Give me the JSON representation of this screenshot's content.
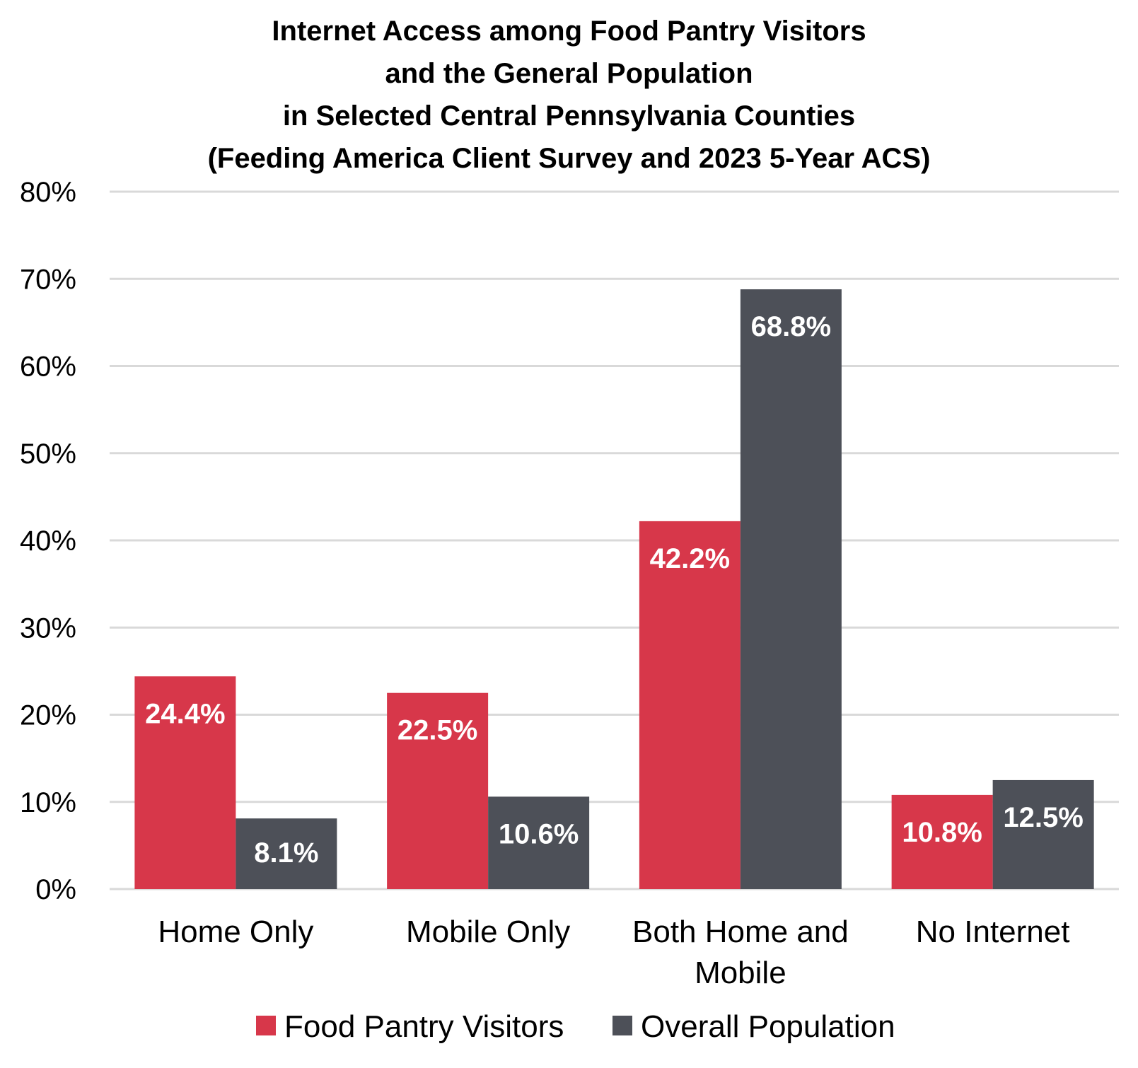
{
  "chart_data": {
    "type": "bar",
    "title_lines": [
      "Internet Access among Food Pantry Visitors",
      "and the General Population",
      "in Selected Central Pennsylvania Counties",
      "(Feeding America Client Survey and 2023 5-Year ACS)"
    ],
    "categories": [
      [
        "Home Only"
      ],
      [
        "Mobile Only"
      ],
      [
        "Both Home and",
        "Mobile"
      ],
      [
        "No Internet"
      ]
    ],
    "series": [
      {
        "name": "Food Pantry Visitors",
        "color": "#D7374A",
        "values": [
          24.4,
          22.5,
          42.2,
          10.8
        ],
        "labels": [
          "24.4%",
          "22.5%",
          "42.2%",
          "10.8%"
        ]
      },
      {
        "name": "Overall Population",
        "color": "#4D5058",
        "values": [
          8.1,
          10.6,
          68.8,
          12.5
        ],
        "labels": [
          "8.1%",
          "10.6%",
          "68.8%",
          "12.5%"
        ]
      }
    ],
    "ylim": [
      0,
      80
    ],
    "yticks": [
      0,
      10,
      20,
      30,
      40,
      50,
      60,
      70,
      80
    ],
    "ytick_labels": [
      "0%",
      "10%",
      "20%",
      "30%",
      "40%",
      "50%",
      "60%",
      "70%",
      "80%"
    ],
    "xlabel": "",
    "ylabel": "",
    "grid": true,
    "grid_color": "#D9D9D9",
    "legend_position": "bottom"
  }
}
